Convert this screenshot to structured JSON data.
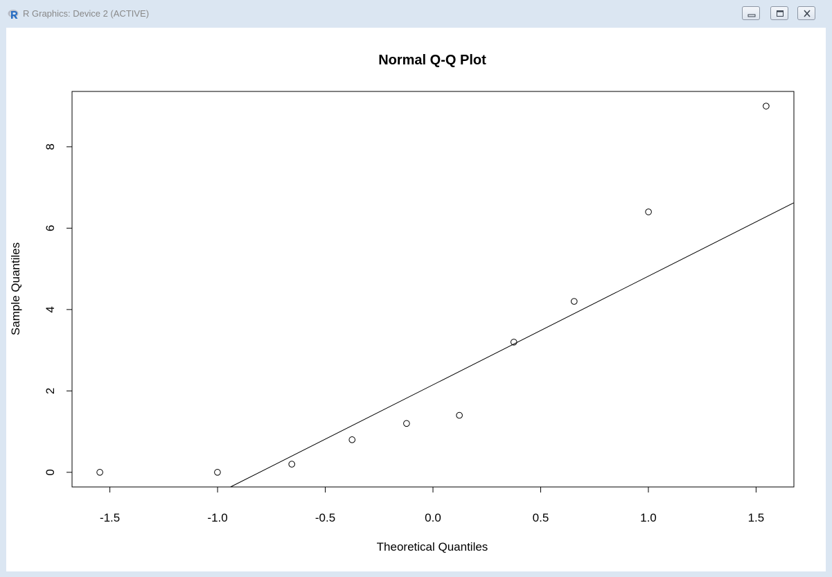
{
  "window": {
    "title": "R Graphics: Device 2 (ACTIVE)",
    "icon": "r-logo-icon",
    "buttons": {
      "minimize": "minimize-icon",
      "maximize": "maximize-icon",
      "close": "close-icon"
    }
  },
  "colors": {
    "frame": "#dbe6f2",
    "title_text": "#888888",
    "plot_ink": "#000000",
    "r_logo": "#276dc3"
  },
  "chart_data": {
    "type": "scatter",
    "title": "Normal Q-Q Plot",
    "xlabel": "Theoretical Quantiles",
    "ylabel": "Sample Quantiles",
    "xlim": [
      -1.6756,
      1.6756
    ],
    "ylim": [
      -0.36,
      9.36
    ],
    "xticks": [
      -1.5,
      -1.0,
      -0.5,
      0.0,
      0.5,
      1.0,
      1.5
    ],
    "xtick_labels": [
      "-1.5",
      "-1.0",
      "-0.5",
      "0.0",
      "0.5",
      "1.0",
      "1.5"
    ],
    "yticks": [
      0,
      2,
      4,
      6,
      8
    ],
    "ytick_labels": [
      "0",
      "2",
      "4",
      "6",
      "8"
    ],
    "points": {
      "x": [
        -1.5466,
        -1.0005,
        -0.6554,
        -0.3755,
        -0.1226,
        0.1226,
        0.3755,
        0.6554,
        1.0005,
        1.5466
      ],
      "y": [
        0,
        0,
        0.2,
        0.8,
        1.2,
        1.4,
        3.2,
        4.2,
        6.4,
        9.0
      ]
    },
    "qqline": {
      "intercept": 2.15,
      "slope": 2.67
    },
    "grid": false,
    "legend": "none",
    "marker": "open-circle"
  }
}
